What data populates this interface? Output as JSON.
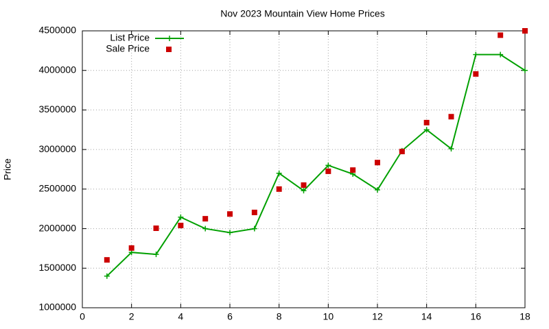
{
  "chart_data": {
    "type": "line",
    "title": "Nov 2023 Mountain View Home Prices",
    "ylabel": "Price",
    "x": [
      1,
      2,
      3,
      4,
      5,
      6,
      7,
      8,
      9,
      10,
      11,
      12,
      13,
      14,
      15,
      16,
      17,
      18
    ],
    "series": [
      {
        "name": "List Price",
        "color": "#00a000",
        "style": "linespoints",
        "values": [
          1400000,
          1700000,
          1675000,
          2145000,
          2000000,
          1950000,
          2000000,
          2700000,
          2480000,
          2800000,
          2690000,
          2490000,
          2985000,
          3250000,
          3010000,
          4200000,
          4200000,
          4000000
        ]
      },
      {
        "name": "Sale Price",
        "color": "#cc0000",
        "style": "points",
        "values": [
          1605000,
          1755000,
          2005000,
          2040000,
          2125000,
          2185000,
          2205000,
          2500000,
          2550000,
          2725000,
          2740000,
          2835000,
          2975000,
          3340000,
          3415000,
          3955000,
          4445000,
          4500000
        ]
      }
    ],
    "xlim": [
      0,
      18
    ],
    "xticks": [
      0,
      2,
      4,
      6,
      8,
      10,
      12,
      14,
      16,
      18
    ],
    "ylim": [
      1000000,
      4500000
    ],
    "yticks": [
      1000000,
      1500000,
      2000000,
      2500000,
      3000000,
      3500000,
      4000000,
      4500000
    ],
    "grid": true,
    "legend": "top-left"
  }
}
